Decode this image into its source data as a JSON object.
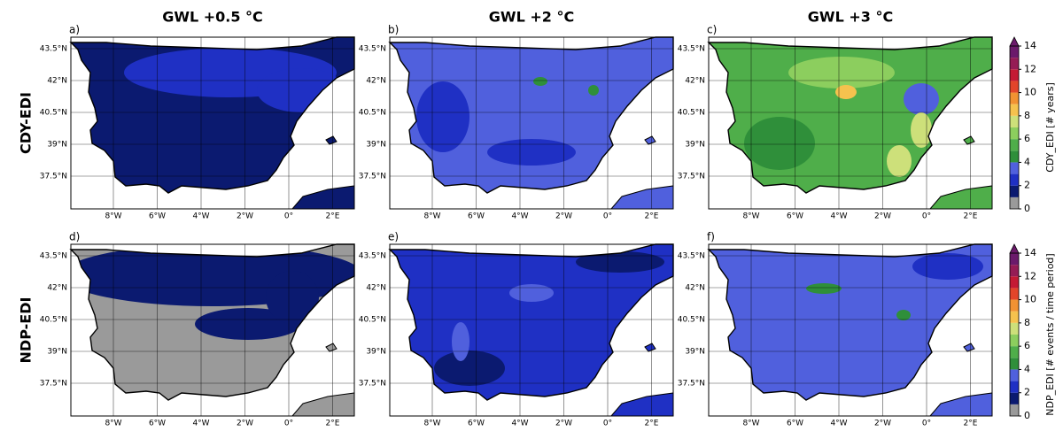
{
  "columns": [
    "GWL +0.5 °C",
    "GWL +2 °C",
    "GWL +3 °C"
  ],
  "rows": [
    {
      "label": "CDY-EDI",
      "panels": [
        "a)",
        "b)",
        "c)"
      ],
      "colorbar": {
        "label": "CDY_EDI [# years]",
        "lim": [
          0,
          14
        ],
        "ticks": [
          0,
          2,
          4,
          6,
          8,
          10,
          12,
          14
        ],
        "colors": [
          "#9a9a9a",
          "#0b1a70",
          "#1f30c4",
          "#5060dd",
          "#2f8f3a",
          "#4fae4a",
          "#8cce5e",
          "#cde07a",
          "#f5c24e",
          "#f19232",
          "#e2452a",
          "#c41a34",
          "#951c55",
          "#6b1a6b"
        ]
      }
    },
    {
      "label": "NDP-EDI",
      "panels": [
        "d)",
        "e)",
        "f)"
      ],
      "colorbar": {
        "label": "NDP_EDI [# events / time period]",
        "lim": [
          0,
          14
        ],
        "ticks": [
          0,
          2,
          4,
          6,
          8,
          10,
          12,
          14
        ],
        "colors": [
          "#9a9a9a",
          "#0b1a70",
          "#1f30c4",
          "#5060dd",
          "#2f8f3a",
          "#4fae4a",
          "#8cce5e",
          "#cde07a",
          "#f5c24e",
          "#f19232",
          "#e2452a",
          "#c41a34",
          "#951c55",
          "#6b1a6b"
        ]
      }
    }
  ],
  "lat_ticks": [
    "43.5°N",
    "42°N",
    "40.5°N",
    "39°N",
    "37.5°N"
  ],
  "lon_ticks": [
    "8°W",
    "6°W",
    "4°W",
    "2°W",
    "0°",
    "2°E"
  ]
}
